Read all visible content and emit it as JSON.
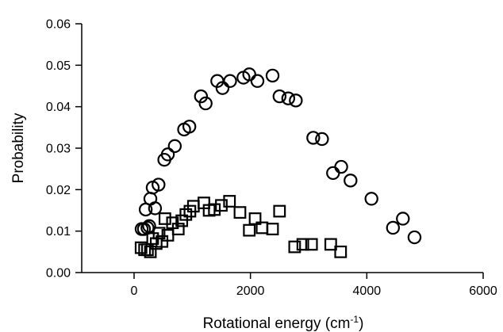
{
  "chart_data": {
    "type": "scatter",
    "title": "",
    "xlabel": "Rotational energy (cm",
    "xlabel_sup": "-1",
    "xlabel_suffix": ")",
    "ylabel": "Probability",
    "xlim": [
      -900,
      6000
    ],
    "ylim": [
      0,
      0.06
    ],
    "xticks": [
      0,
      2000,
      4000,
      6000
    ],
    "xtick_labels": [
      "0",
      "2000",
      "4000",
      "6000"
    ],
    "yticks": [
      0,
      0.01,
      0.02,
      0.03,
      0.04,
      0.05,
      0.06
    ],
    "ytick_labels": [
      "0.00",
      "0.01",
      "0.02",
      "0.03",
      "0.04",
      "0.05",
      "0.06"
    ],
    "grid": false,
    "legend": "none",
    "series": [
      {
        "marker": "circle",
        "points": [
          [
            130,
            0.0105
          ],
          [
            170,
            0.0105
          ],
          [
            200,
            0.0152
          ],
          [
            230,
            0.0108
          ],
          [
            260,
            0.0112
          ],
          [
            280,
            0.0178
          ],
          [
            320,
            0.0205
          ],
          [
            360,
            0.0155
          ],
          [
            420,
            0.0212
          ],
          [
            520,
            0.0272
          ],
          [
            580,
            0.0285
          ],
          [
            700,
            0.0305
          ],
          [
            860,
            0.0345
          ],
          [
            950,
            0.0352
          ],
          [
            1150,
            0.0425
          ],
          [
            1230,
            0.0408
          ],
          [
            1430,
            0.0462
          ],
          [
            1520,
            0.0445
          ],
          [
            1650,
            0.0462
          ],
          [
            1880,
            0.047
          ],
          [
            1980,
            0.0478
          ],
          [
            2120,
            0.0462
          ],
          [
            2380,
            0.0475
          ],
          [
            2500,
            0.0425
          ],
          [
            2650,
            0.042
          ],
          [
            2780,
            0.0415
          ],
          [
            3080,
            0.0325
          ],
          [
            3230,
            0.0322
          ],
          [
            3420,
            0.024
          ],
          [
            3560,
            0.0255
          ],
          [
            3720,
            0.0222
          ],
          [
            4080,
            0.0178
          ],
          [
            4450,
            0.0108
          ],
          [
            4620,
            0.013
          ],
          [
            4820,
            0.0085
          ]
        ]
      },
      {
        "marker": "square",
        "points": [
          [
            120,
            0.006
          ],
          [
            180,
            0.0055
          ],
          [
            230,
            0.0055
          ],
          [
            280,
            0.005
          ],
          [
            320,
            0.0082
          ],
          [
            380,
            0.007
          ],
          [
            430,
            0.0095
          ],
          [
            480,
            0.0075
          ],
          [
            530,
            0.013
          ],
          [
            580,
            0.009
          ],
          [
            660,
            0.012
          ],
          [
            760,
            0.0105
          ],
          [
            820,
            0.0125
          ],
          [
            890,
            0.014
          ],
          [
            960,
            0.0148
          ],
          [
            1020,
            0.016
          ],
          [
            1200,
            0.0168
          ],
          [
            1290,
            0.015
          ],
          [
            1380,
            0.0152
          ],
          [
            1500,
            0.0162
          ],
          [
            1640,
            0.0172
          ],
          [
            1820,
            0.0145
          ],
          [
            1980,
            0.0102
          ],
          [
            2080,
            0.013
          ],
          [
            2200,
            0.0108
          ],
          [
            2380,
            0.0105
          ],
          [
            2500,
            0.0148
          ],
          [
            2760,
            0.0062
          ],
          [
            2900,
            0.0068
          ],
          [
            3050,
            0.0068
          ],
          [
            3380,
            0.0068
          ],
          [
            3550,
            0.005
          ]
        ]
      }
    ]
  }
}
